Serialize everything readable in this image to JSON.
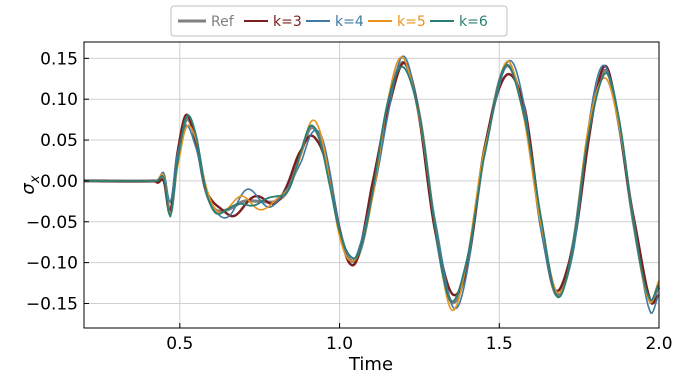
{
  "chart_data": {
    "type": "line",
    "title": "",
    "xlabel": "Time",
    "ylabel": "σ",
    "ylabel_subscript": "x",
    "xlim": [
      0.2,
      2.0
    ],
    "ylim": [
      -0.18,
      0.17
    ],
    "xticks": [
      0.5,
      1.0,
      1.5,
      2.0
    ],
    "xtick_labels": [
      "0.5",
      "1.0",
      "1.5",
      "2.0"
    ],
    "yticks": [
      -0.15,
      -0.1,
      -0.05,
      0.0,
      0.05,
      0.1,
      0.15
    ],
    "ytick_labels": [
      "−0.15",
      "−0.10",
      "−0.05",
      "0.00",
      "0.05",
      "0.10",
      "0.15"
    ],
    "grid": true,
    "legend_position": "top-center",
    "series": [
      {
        "name": "Ref",
        "color": "#808080",
        "width": 3.2,
        "wiggle": 0.0,
        "phase": 0.0
      },
      {
        "name": "k=3",
        "color": "#7b1f1f",
        "width": 2.4,
        "wiggle": 0.01,
        "phase": 1.0
      },
      {
        "name": "k=4",
        "color": "#3e7aa3",
        "width": 1.6,
        "wiggle": 0.012,
        "phase": 2.2
      },
      {
        "name": "k=5",
        "color": "#e8931e",
        "width": 1.6,
        "wiggle": 0.009,
        "phase": 3.4
      },
      {
        "name": "k=6",
        "color": "#2a7f74",
        "width": 1.8,
        "wiggle": 0.006,
        "phase": 4.6
      }
    ],
    "reference_points": [
      [
        0.2,
        0.0
      ],
      [
        0.43,
        0.0
      ],
      [
        0.45,
        0.004
      ],
      [
        0.47,
        -0.04
      ],
      [
        0.49,
        0.02
      ],
      [
        0.52,
        0.075
      ],
      [
        0.55,
        0.05
      ],
      [
        0.58,
        -0.01
      ],
      [
        0.61,
        -0.035
      ],
      [
        0.65,
        -0.035
      ],
      [
        0.7,
        -0.025
      ],
      [
        0.75,
        -0.025
      ],
      [
        0.8,
        -0.025
      ],
      [
        0.84,
        -0.01
      ],
      [
        0.88,
        0.035
      ],
      [
        0.91,
        0.065
      ],
      [
        0.94,
        0.05
      ],
      [
        0.97,
        0.0
      ],
      [
        1.0,
        -0.06
      ],
      [
        1.03,
        -0.095
      ],
      [
        1.06,
        -0.09
      ],
      [
        1.1,
        -0.02
      ],
      [
        1.15,
        0.09
      ],
      [
        1.2,
        0.145
      ],
      [
        1.25,
        0.08
      ],
      [
        1.3,
        -0.06
      ],
      [
        1.35,
        -0.148
      ],
      [
        1.4,
        -0.1
      ],
      [
        1.45,
        0.03
      ],
      [
        1.52,
        0.14
      ],
      [
        1.58,
        0.08
      ],
      [
        1.63,
        -0.05
      ],
      [
        1.68,
        -0.14
      ],
      [
        1.73,
        -0.08
      ],
      [
        1.78,
        0.06
      ],
      [
        1.83,
        0.135
      ],
      [
        1.87,
        0.08
      ],
      [
        1.92,
        -0.05
      ],
      [
        1.97,
        -0.145
      ],
      [
        2.0,
        -0.13
      ]
    ]
  }
}
